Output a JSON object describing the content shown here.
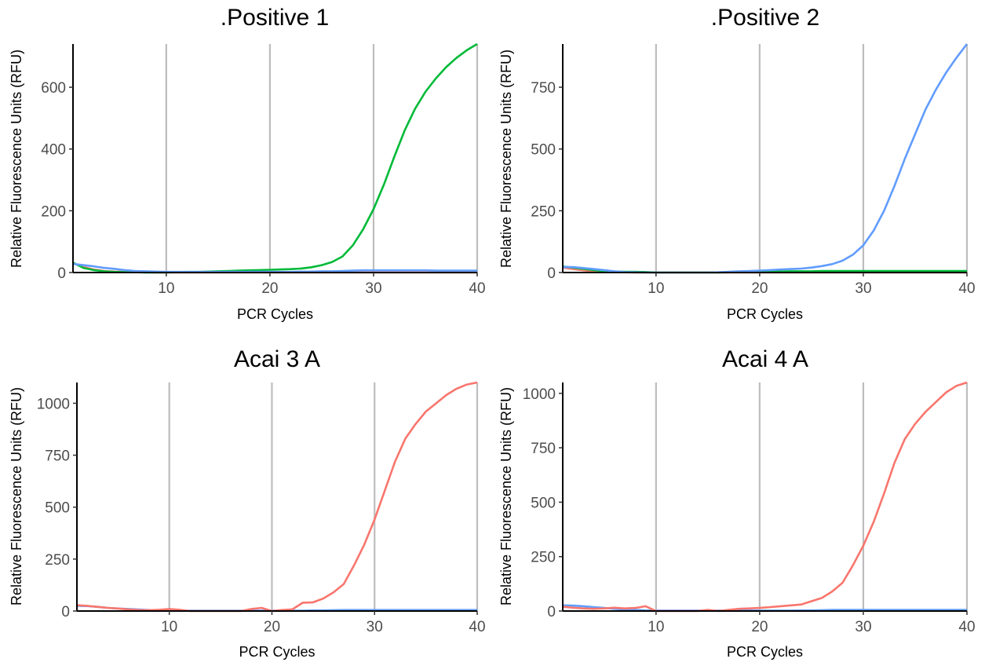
{
  "chart_data": [
    {
      "type": "line",
      "title": ".Positive 1",
      "xlabel": "PCR Cycles",
      "ylabel": "Relative Fluorescence Units (RFU)",
      "xlim": [
        1,
        40
      ],
      "ylim": [
        0,
        740
      ],
      "xticks": [
        10,
        20,
        30,
        40
      ],
      "yticks": [
        0,
        200,
        400,
        600
      ],
      "grid": "vertical",
      "series": [
        {
          "color": "#f8766d",
          "x": [
            1,
            2,
            3,
            4,
            5,
            6,
            7,
            8,
            9,
            10,
            11,
            12,
            13,
            14,
            15,
            16,
            17,
            18,
            19,
            20,
            21,
            22,
            23,
            24,
            25,
            26,
            27,
            28,
            29,
            30,
            31,
            32,
            33,
            34,
            35,
            36,
            37,
            38,
            39,
            40
          ],
          "y": [
            30,
            18,
            10,
            5,
            3,
            2,
            1,
            1,
            0,
            0,
            0,
            0,
            0,
            0,
            0,
            0,
            0,
            0,
            0,
            0,
            0,
            0,
            0,
            0,
            0,
            0,
            0,
            0,
            0,
            0,
            0,
            0,
            0,
            0,
            0,
            0,
            0,
            0,
            0,
            0
          ]
        },
        {
          "color": "#00ba38",
          "x": [
            1,
            2,
            3,
            4,
            5,
            6,
            7,
            8,
            9,
            10,
            11,
            12,
            13,
            14,
            15,
            16,
            17,
            18,
            19,
            20,
            21,
            22,
            23,
            24,
            25,
            26,
            27,
            28,
            29,
            30,
            31,
            32,
            33,
            34,
            35,
            36,
            37,
            38,
            39,
            40
          ],
          "y": [
            32,
            15,
            8,
            4,
            2,
            1,
            1,
            0,
            0,
            0,
            1,
            2,
            2,
            3,
            4,
            5,
            6,
            7,
            8,
            9,
            10,
            11,
            13,
            17,
            24,
            34,
            52,
            88,
            140,
            205,
            285,
            375,
            460,
            530,
            585,
            628,
            665,
            695,
            720,
            740
          ]
        },
        {
          "color": "#619cff",
          "x": [
            1,
            2,
            3,
            4,
            5,
            6,
            7,
            8,
            9,
            10,
            11,
            12,
            13,
            14,
            15,
            16,
            17,
            18,
            19,
            20,
            21,
            22,
            23,
            24,
            25,
            26,
            27,
            28,
            29,
            30,
            31,
            32,
            33,
            34,
            35,
            36,
            37,
            38,
            39,
            40
          ],
          "y": [
            28,
            24,
            20,
            15,
            12,
            8,
            5,
            4,
            3,
            2,
            2,
            2,
            2,
            2,
            2,
            2,
            2,
            2,
            2,
            2,
            2,
            2,
            3,
            3,
            4,
            4,
            5,
            6,
            7,
            7,
            7,
            7,
            7,
            7,
            7,
            6,
            6,
            6,
            6,
            6
          ]
        }
      ]
    },
    {
      "type": "line",
      "title": ".Positive 2",
      "xlabel": "PCR Cycles",
      "ylabel": "Relative Fluorescence Units (RFU)",
      "xlim": [
        1,
        40
      ],
      "ylim": [
        0,
        925
      ],
      "xticks": [
        10,
        20,
        30,
        40
      ],
      "yticks": [
        0,
        250,
        500,
        750
      ],
      "grid": "vertical",
      "series": [
        {
          "color": "#f8766d",
          "x": [
            1,
            2,
            3,
            4,
            5,
            6,
            7,
            8,
            9,
            10,
            11,
            12,
            13,
            14,
            15,
            16,
            17,
            18,
            19,
            20,
            21,
            22,
            23,
            24,
            25,
            26,
            27,
            28,
            29,
            30,
            31,
            32,
            33,
            34,
            35,
            36,
            37,
            38,
            39,
            40
          ],
          "y": [
            20,
            14,
            9,
            5,
            3,
            2,
            1,
            0,
            0,
            0,
            0,
            0,
            0,
            0,
            0,
            0,
            0,
            0,
            0,
            0,
            0,
            0,
            0,
            0,
            0,
            0,
            0,
            0,
            0,
            0,
            0,
            0,
            0,
            0,
            0,
            0,
            0,
            0,
            0,
            0
          ]
        },
        {
          "color": "#00ba38",
          "x": [
            1,
            2,
            3,
            4,
            5,
            6,
            7,
            8,
            9,
            10,
            11,
            12,
            13,
            14,
            15,
            16,
            17,
            18,
            19,
            20,
            21,
            22,
            23,
            24,
            25,
            26,
            27,
            28,
            29,
            30,
            31,
            32,
            33,
            34,
            35,
            36,
            37,
            38,
            39,
            40
          ],
          "y": [
            24,
            20,
            15,
            10,
            6,
            4,
            3,
            3,
            2,
            0,
            0,
            0,
            0,
            0,
            0,
            0,
            1,
            2,
            3,
            4,
            4,
            4,
            5,
            5,
            5,
            6,
            6,
            6,
            6,
            6,
            6,
            6,
            6,
            6,
            6,
            6,
            6,
            6,
            6,
            6
          ]
        },
        {
          "color": "#619cff",
          "x": [
            1,
            2,
            3,
            4,
            5,
            6,
            7,
            8,
            9,
            10,
            11,
            12,
            13,
            14,
            15,
            16,
            17,
            18,
            19,
            20,
            21,
            22,
            23,
            24,
            25,
            26,
            27,
            28,
            29,
            30,
            31,
            32,
            33,
            34,
            35,
            36,
            37,
            38,
            39,
            40
          ],
          "y": [
            22,
            22,
            18,
            14,
            10,
            5,
            2,
            1,
            0,
            0,
            0,
            0,
            0,
            0,
            0,
            1,
            3,
            5,
            6,
            8,
            10,
            12,
            14,
            16,
            20,
            26,
            34,
            48,
            72,
            110,
            170,
            250,
            350,
            460,
            560,
            660,
            740,
            810,
            870,
            925
          ]
        }
      ]
    },
    {
      "type": "line",
      "title": "Acai 3 A",
      "xlabel": "PCR Cycles",
      "ylabel": "Relative Fluorescence Units (RFU)",
      "xlim": [
        1,
        40
      ],
      "ylim": [
        0,
        1100
      ],
      "xticks": [
        10,
        20,
        30,
        40
      ],
      "yticks": [
        0,
        250,
        500,
        750,
        1000
      ],
      "grid": "vertical",
      "series": [
        {
          "color": "#619cff",
          "x": [
            1,
            2,
            3,
            4,
            5,
            6,
            7,
            8,
            9,
            10,
            11,
            12,
            13,
            14,
            15,
            16,
            17,
            18,
            19,
            20,
            21,
            22,
            23,
            24,
            25,
            26,
            27,
            28,
            29,
            30,
            31,
            32,
            33,
            34,
            35,
            36,
            37,
            38,
            39,
            40
          ],
          "y": [
            25,
            24,
            20,
            15,
            12,
            10,
            7,
            5,
            3,
            2,
            2,
            2,
            2,
            2,
            2,
            2,
            2,
            2,
            2,
            2,
            2,
            2,
            2,
            3,
            3,
            4,
            5,
            5,
            5,
            5,
            5,
            5,
            5,
            5,
            5,
            5,
            5,
            5,
            5,
            5
          ]
        },
        {
          "color": "#f8766d",
          "x": [
            1,
            2,
            3,
            4,
            5,
            6,
            7,
            8,
            9,
            10,
            11,
            12,
            13,
            14,
            15,
            16,
            17,
            18,
            19,
            20,
            21,
            22,
            23,
            24,
            25,
            26,
            27,
            28,
            29,
            30,
            31,
            32,
            33,
            34,
            35,
            36,
            37,
            38,
            39,
            40
          ],
          "y": [
            28,
            25,
            20,
            15,
            12,
            8,
            5,
            4,
            6,
            10,
            6,
            0,
            0,
            0,
            0,
            0,
            0,
            10,
            15,
            0,
            5,
            8,
            40,
            42,
            60,
            90,
            130,
            220,
            320,
            440,
            580,
            720,
            830,
            900,
            960,
            1000,
            1040,
            1070,
            1090,
            1100
          ]
        }
      ]
    },
    {
      "type": "line",
      "title": "Acai 4 A",
      "xlabel": "PCR Cycles",
      "ylabel": "Relative Fluorescence Units (RFU)",
      "xlim": [
        1,
        40
      ],
      "ylim": [
        0,
        1050
      ],
      "xticks": [
        10,
        20,
        30,
        40
      ],
      "yticks": [
        0,
        250,
        500,
        750,
        1000
      ],
      "grid": "vertical",
      "series": [
        {
          "color": "#619cff",
          "x": [
            1,
            2,
            3,
            4,
            5,
            6,
            7,
            8,
            9,
            10,
            11,
            12,
            13,
            14,
            15,
            16,
            17,
            18,
            19,
            20,
            21,
            22,
            23,
            24,
            25,
            26,
            27,
            28,
            29,
            30,
            31,
            32,
            33,
            34,
            35,
            36,
            37,
            38,
            39,
            40
          ],
          "y": [
            26,
            25,
            22,
            18,
            14,
            10,
            7,
            5,
            3,
            2,
            2,
            2,
            2,
            2,
            2,
            2,
            2,
            2,
            2,
            2,
            2,
            2,
            2,
            3,
            3,
            4,
            5,
            5,
            5,
            5,
            5,
            5,
            5,
            5,
            5,
            5,
            5,
            5,
            5,
            5
          ]
        },
        {
          "color": "#f8766d",
          "x": [
            1,
            2,
            3,
            4,
            5,
            6,
            7,
            8,
            9,
            10,
            11,
            12,
            13,
            14,
            15,
            16,
            17,
            18,
            19,
            20,
            21,
            22,
            23,
            24,
            25,
            26,
            27,
            28,
            29,
            30,
            31,
            32,
            33,
            34,
            35,
            36,
            37,
            38,
            39,
            40
          ],
          "y": [
            20,
            15,
            12,
            10,
            12,
            15,
            12,
            14,
            22,
            0,
            0,
            0,
            0,
            0,
            5,
            0,
            5,
            10,
            12,
            14,
            18,
            22,
            26,
            30,
            45,
            60,
            90,
            130,
            210,
            300,
            410,
            540,
            680,
            790,
            860,
            915,
            960,
            1005,
            1035,
            1050
          ]
        }
      ]
    }
  ]
}
